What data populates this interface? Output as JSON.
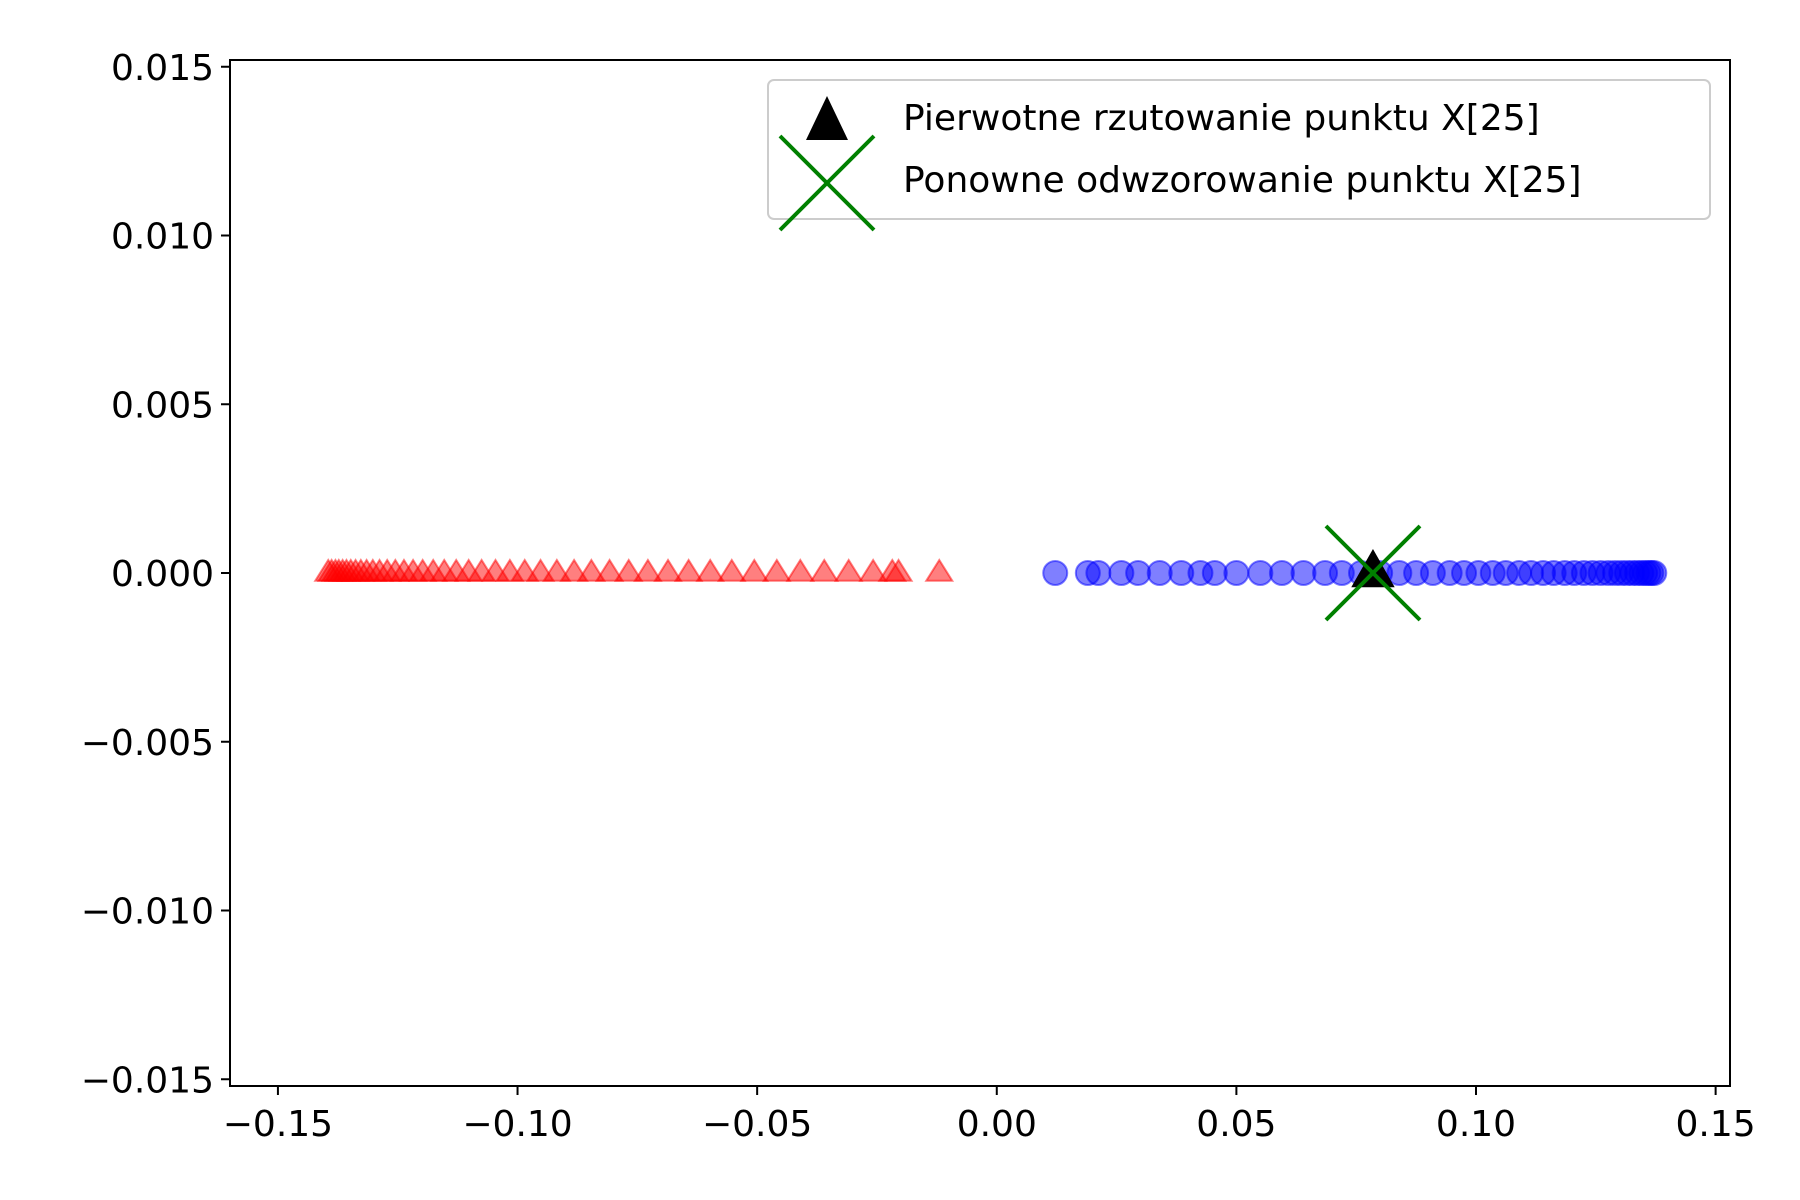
{
  "chart_data": {
    "type": "scatter",
    "title": "",
    "xlabel": "",
    "ylabel": "",
    "xlim": [
      -0.16,
      0.153
    ],
    "ylim": [
      -0.0152,
      0.0152
    ],
    "x_ticks": [
      -0.15,
      -0.1,
      -0.05,
      0.0,
      0.05,
      0.1,
      0.15
    ],
    "x_tick_labels": [
      "−0.15",
      "−0.10",
      "−0.05",
      "0.00",
      "0.05",
      "0.10",
      "0.15"
    ],
    "y_ticks": [
      0.015,
      0.01,
      0.005,
      0.0,
      -0.005,
      -0.01,
      -0.015
    ],
    "y_tick_labels": [
      "0.015",
      "0.010",
      "0.005",
      "0.000",
      "−0.005",
      "−0.010",
      "−0.015"
    ],
    "grid": false,
    "legend_position": "top-right",
    "series": [
      {
        "marker": "triangle",
        "color": "#ff0000",
        "alpha": 0.5,
        "x": [
          -0.1395,
          -0.1388,
          -0.138,
          -0.1373,
          -0.1365,
          -0.1357,
          -0.1348,
          -0.1338,
          -0.1327,
          -0.1315,
          -0.1302,
          -0.1288,
          -0.1272,
          -0.1255,
          -0.1237,
          -0.1218,
          -0.1198,
          -0.1176,
          -0.1153,
          -0.1128,
          -0.1102,
          -0.1075,
          -0.1046,
          -0.1016,
          -0.0985,
          -0.0952,
          -0.0918,
          -0.0882,
          -0.0846,
          -0.0808,
          -0.0768,
          -0.0728,
          -0.0686,
          -0.0643,
          -0.0598,
          -0.0553,
          -0.0506,
          -0.0459,
          -0.041,
          -0.036,
          -0.0309,
          -0.0258,
          -0.0218,
          -0.0205,
          -0.012
        ],
        "y": [
          0,
          0,
          0,
          0,
          0,
          0,
          0,
          0,
          0,
          0,
          0,
          0,
          0,
          0,
          0,
          0,
          0,
          0,
          0,
          0,
          0,
          0,
          0,
          0,
          0,
          0,
          0,
          0,
          0,
          0,
          0,
          0,
          0,
          0,
          0,
          0,
          0,
          0,
          0,
          0,
          0,
          0,
          0,
          0,
          0
        ]
      },
      {
        "marker": "circle",
        "color": "#0000ff",
        "alpha": 0.5,
        "x": [
          0.0122,
          0.019,
          0.0212,
          0.026,
          0.0295,
          0.034,
          0.0385,
          0.0425,
          0.0455,
          0.05,
          0.055,
          0.0595,
          0.064,
          0.0685,
          0.072,
          0.076,
          0.08,
          0.084,
          0.0875,
          0.091,
          0.0945,
          0.0975,
          0.1005,
          0.1035,
          0.1062,
          0.109,
          0.1115,
          0.114,
          0.1162,
          0.1185,
          0.1205,
          0.1225,
          0.1243,
          0.126,
          0.1276,
          0.129,
          0.1303,
          0.1315,
          0.1326,
          0.1336,
          0.1345,
          0.1353,
          0.136,
          0.1366,
          0.1372
        ],
        "y": [
          0,
          0,
          0,
          0,
          0,
          0,
          0,
          0,
          0,
          0,
          0,
          0,
          0,
          0,
          0,
          0,
          0,
          0,
          0,
          0,
          0,
          0,
          0,
          0,
          0,
          0,
          0,
          0,
          0,
          0,
          0,
          0,
          0,
          0,
          0,
          0,
          0,
          0,
          0,
          0,
          0,
          0,
          0,
          0,
          0
        ]
      },
      {
        "name": "Pierwotne rzutowanie punktu X[25]",
        "marker": "triangle",
        "color": "#000000",
        "x": [
          0.0785
        ],
        "y": [
          0
        ]
      },
      {
        "name": "Ponowne odwzorowanie punktu X[25]",
        "marker": "x",
        "color": "#008000",
        "x": [
          0.0785
        ],
        "y": [
          0
        ]
      }
    ]
  }
}
